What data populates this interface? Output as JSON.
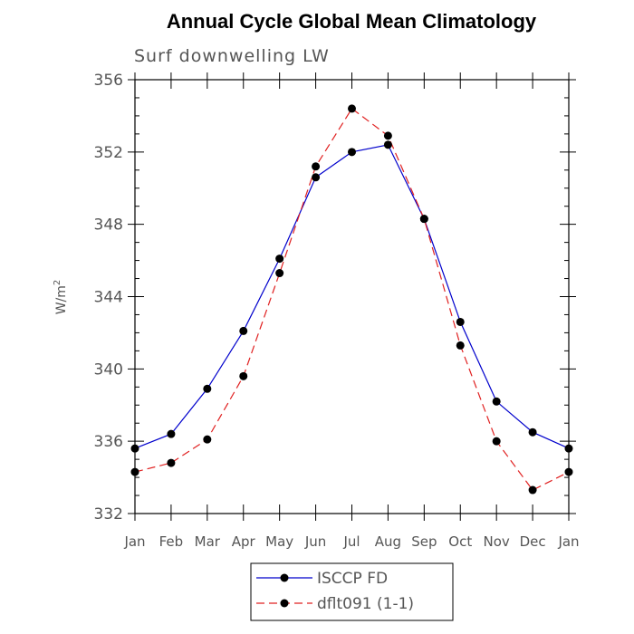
{
  "chart_data": {
    "type": "line",
    "title": "Annual Cycle Global Mean Climatology",
    "subtitle": "Surf downwelling LW",
    "ylabel": "W/m",
    "ylabel_sup": "2",
    "xlabel": "",
    "ylim": [
      332,
      356
    ],
    "yticks": [
      332,
      336,
      340,
      344,
      348,
      352,
      356
    ],
    "y_minor_step": 1,
    "categories": [
      "Jan",
      "Feb",
      "Mar",
      "Apr",
      "May",
      "Jun",
      "Jul",
      "Aug",
      "Sep",
      "Oct",
      "Nov",
      "Dec",
      "Jan"
    ],
    "grid": false,
    "legend_position": "bottom-center",
    "series": [
      {
        "name": "ISCCP FD",
        "color": "#0000cc",
        "dash": "solid",
        "values": [
          335.6,
          336.4,
          338.9,
          342.1,
          346.1,
          350.6,
          352.0,
          352.4,
          348.3,
          342.6,
          338.2,
          336.5,
          335.6
        ]
      },
      {
        "name": "dflt091 (1-1)",
        "color": "#e02020",
        "dash": "dashed",
        "values": [
          334.3,
          334.8,
          336.1,
          339.6,
          345.3,
          351.2,
          354.4,
          352.9,
          348.3,
          341.3,
          336.0,
          333.3,
          334.3
        ]
      }
    ]
  }
}
